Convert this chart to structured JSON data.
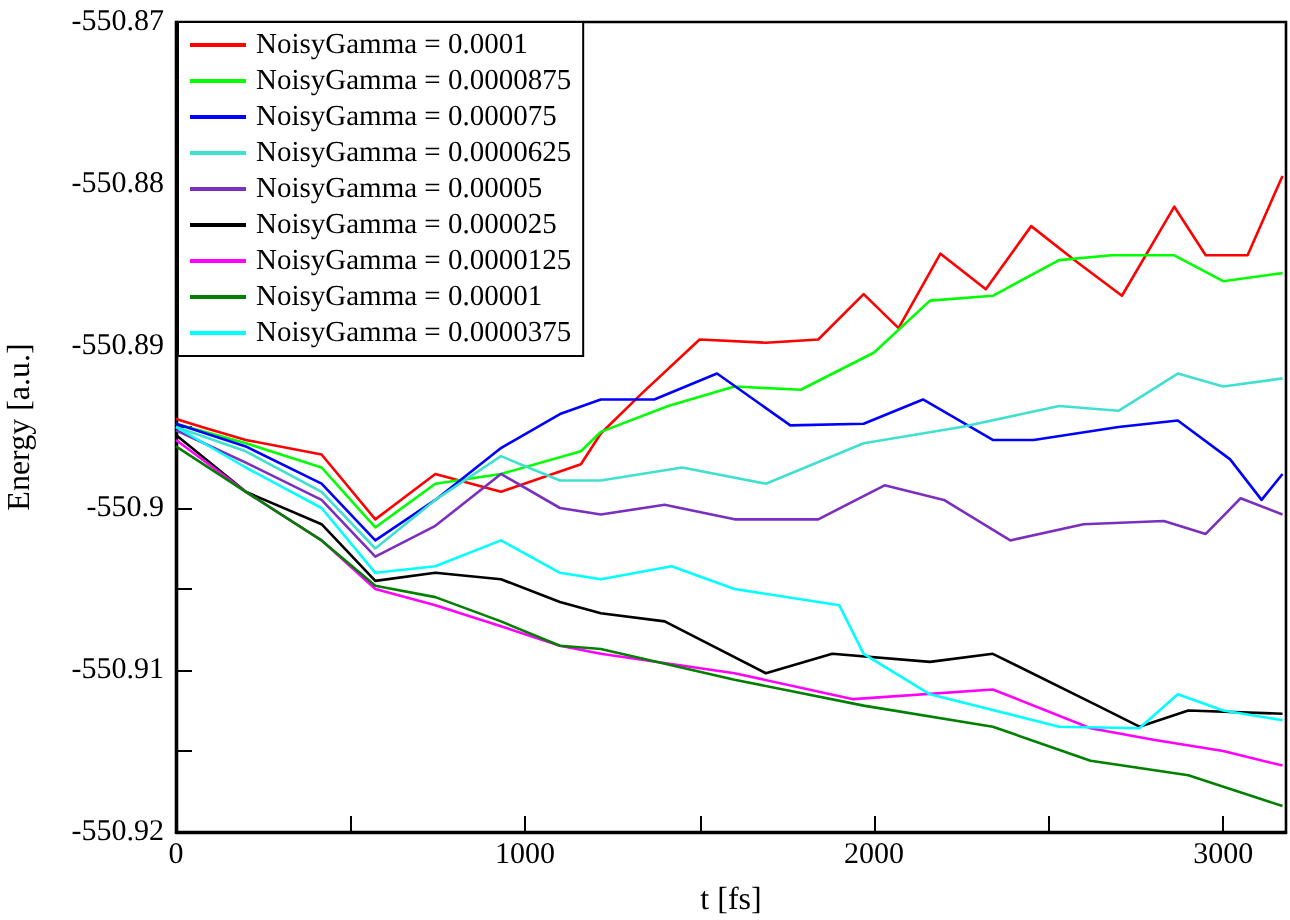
{
  "chart_data": {
    "type": "line",
    "xlabel": "t [fs]",
    "ylabel": "Energy [a.u.]",
    "xlim": [
      0,
      3180
    ],
    "ylim": [
      -550.92,
      -550.87
    ],
    "xticks": [
      0,
      {
        "value": 500,
        "label": null
      },
      1000,
      {
        "value": 1500,
        "label": null
      },
      2000,
      {
        "value": 2500,
        "label": null
      },
      3000
    ],
    "yticks": [
      -550.92,
      {
        "value": -550.915,
        "label": null
      },
      -550.91,
      {
        "value": -550.905,
        "label": null
      },
      -550.9,
      {
        "value": -550.895,
        "label": null
      },
      -550.89,
      {
        "value": -550.885,
        "label": null
      },
      -550.88,
      {
        "value": -550.875,
        "label": null
      },
      -550.87
    ],
    "grid": false,
    "legend": "top left",
    "marker": "none",
    "line_style": "solid",
    "series": [
      {
        "name": "NoisyGamma = 0.0001",
        "color": "#ff0000",
        "x": [
          0,
          74,
          200,
          417,
          571,
          743,
          931,
          1160,
          1217,
          1331,
          1500,
          1690,
          1840,
          1970,
          2070,
          2190,
          2320,
          2450,
          2580,
          2710,
          2860,
          2950,
          3070,
          3170
        ],
        "values": [
          -550.8945,
          -550.895,
          -550.8958,
          -550.8967,
          -550.9007,
          -550.8979,
          -550.899,
          -550.8973,
          -550.8954,
          -550.893,
          -550.8896,
          -550.8898,
          -550.8896,
          -550.8868,
          -550.8889,
          -550.8843,
          -550.8865,
          -550.8826,
          -550.8848,
          -550.8869,
          -550.8814,
          -550.8844,
          -550.8844,
          -550.8795
        ]
      },
      {
        "name": "NoisyGamma = 0.0000875",
        "color": "#00ff00",
        "x": [
          0,
          200,
          417,
          571,
          743,
          931,
          1160,
          1217,
          1410,
          1600,
          1790,
          2000,
          2160,
          2340,
          2530,
          2680,
          2860,
          3000,
          3170
        ],
        "values": [
          -550.8948,
          -550.896,
          -550.8975,
          -550.9012,
          -550.8985,
          -550.8979,
          -550.8965,
          -550.8953,
          -550.8937,
          -550.8925,
          -550.8927,
          -550.8904,
          -550.8872,
          -550.8869,
          -550.8847,
          -550.8844,
          -550.8844,
          -550.886,
          -550.8855
        ]
      },
      {
        "name": "NoisyGamma = 0.000075",
        "color": "#0000ff",
        "x": [
          0,
          200,
          417,
          571,
          743,
          931,
          1100,
          1217,
          1370,
          1550,
          1760,
          1970,
          2140,
          2340,
          2457,
          2700,
          2870,
          3020,
          3110,
          3170
        ],
        "values": [
          -550.8948,
          -550.8962,
          -550.8985,
          -550.902,
          -550.8995,
          -550.8963,
          -550.8942,
          -550.8933,
          -550.8933,
          -550.8917,
          -550.8949,
          -550.8948,
          -550.8933,
          -550.8958,
          -550.8958,
          -550.895,
          -550.8946,
          -550.897,
          -550.8995,
          -550.8979
        ]
      },
      {
        "name": "NoisyGamma = 0.0000625",
        "color": "#40e0d0",
        "x": [
          0,
          200,
          417,
          571,
          743,
          931,
          1100,
          1217,
          1450,
          1690,
          1970,
          2250,
          2530,
          2700,
          2870,
          3000,
          3170
        ],
        "values": [
          -550.895,
          -550.8965,
          -550.899,
          -550.9025,
          -550.8995,
          -550.8968,
          -550.8983,
          -550.8983,
          -550.8975,
          -550.8985,
          -550.896,
          -550.895,
          -550.8937,
          -550.894,
          -550.8917,
          -550.8925,
          -550.892
        ]
      },
      {
        "name": "NoisyGamma = 0.00005",
        "color": "#7b2fbe",
        "x": [
          0,
          200,
          417,
          571,
          743,
          931,
          1100,
          1217,
          1400,
          1600,
          1840,
          2030,
          2200,
          2390,
          2600,
          2830,
          2950,
          3050,
          3170
        ],
        "values": [
          -550.8952,
          -550.8972,
          -550.8995,
          -550.903,
          -550.9011,
          -550.8979,
          -550.9,
          -550.9004,
          -550.8998,
          -550.9007,
          -550.9007,
          -550.8986,
          -550.8995,
          -550.902,
          -550.901,
          -550.9008,
          -550.9016,
          -550.8994,
          -550.9004
        ]
      },
      {
        "name": "NoisyGamma = 0.000025",
        "color": "#000000",
        "x": [
          0,
          200,
          417,
          571,
          743,
          931,
          1100,
          1217,
          1400,
          1690,
          1880,
          2160,
          2340,
          2640,
          2760,
          2900,
          3170
        ],
        "values": [
          -550.8955,
          -550.899,
          -550.901,
          -550.9045,
          -550.904,
          -550.9044,
          -550.9058,
          -550.9065,
          -550.907,
          -550.9102,
          -550.909,
          -550.9095,
          -550.909,
          -550.9122,
          -550.9135,
          -550.9125,
          -550.9127
        ]
      },
      {
        "name": "NoisyGamma = 0.0000125",
        "color": "#ff00ff",
        "x": [
          0,
          200,
          417,
          571,
          743,
          931,
          1100,
          1217,
          1600,
          1940,
          2340,
          2620,
          2800,
          3000,
          3170
        ],
        "values": [
          -550.8958,
          -550.899,
          -550.902,
          -550.905,
          -550.906,
          -550.9073,
          -550.9085,
          -550.909,
          -550.9102,
          -550.9118,
          -550.9112,
          -550.9136,
          -550.9143,
          -550.915,
          -550.9159
        ]
      },
      {
        "name": "NoisyGamma = 0.00001",
        "color": "#008000",
        "x": [
          0,
          200,
          417,
          571,
          743,
          931,
          1100,
          1217,
          1600,
          1970,
          2340,
          2620,
          2900,
          3170
        ],
        "values": [
          -550.8962,
          -550.899,
          -550.902,
          -550.9048,
          -550.9055,
          -550.907,
          -550.9085,
          -550.9087,
          -550.9106,
          -550.9122,
          -550.9135,
          -550.9156,
          -550.9165,
          -550.9184
        ]
      },
      {
        "name": "NoisyGamma = 0.0000375",
        "color": "#00ffff",
        "x": [
          0,
          200,
          417,
          571,
          743,
          931,
          1100,
          1217,
          1420,
          1600,
          1900,
          1970,
          2160,
          2530,
          2760,
          2870,
          3000,
          3170
        ],
        "values": [
          -550.895,
          -550.8975,
          -550.9,
          -550.904,
          -550.9036,
          -550.902,
          -550.904,
          -550.9044,
          -550.9036,
          -550.905,
          -550.906,
          -550.909,
          -550.9115,
          -550.9135,
          -550.9136,
          -550.9115,
          -550.9125,
          -550.9131
        ]
      }
    ]
  }
}
